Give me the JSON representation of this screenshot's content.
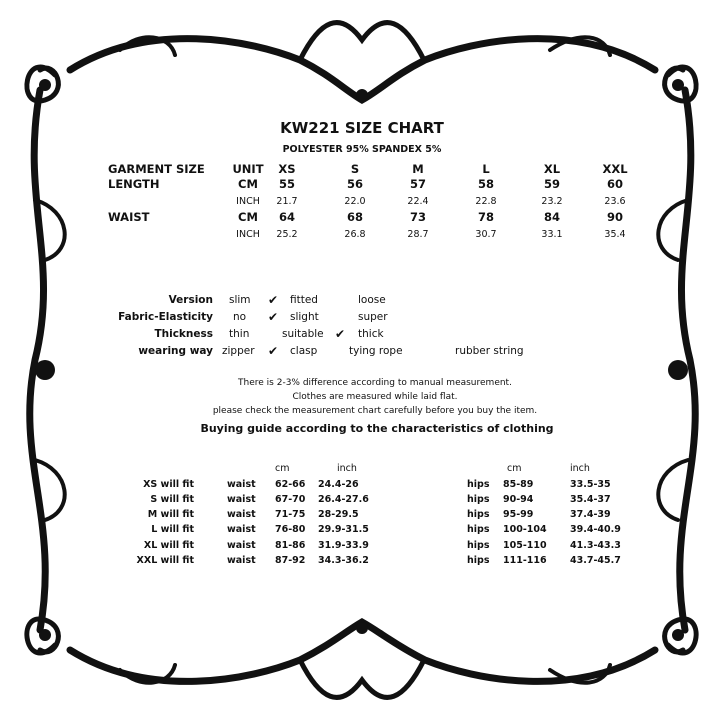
{
  "title": "KW221 SIZE CHART",
  "material": "POLYESTER 95% SPANDEX 5%",
  "size_table": {
    "header": {
      "label": "GARMENT SIZE",
      "unit": "UNIT",
      "sizes": [
        "XS",
        "S",
        "M",
        "L",
        "XL",
        "XXL"
      ]
    },
    "rows": [
      {
        "label": "LENGTH",
        "unit": "CM",
        "values": [
          "55",
          "56",
          "57",
          "58",
          "59",
          "60"
        ],
        "bold": true
      },
      {
        "label": "",
        "unit": "INCH",
        "values": [
          "21.7",
          "22.0",
          "22.4",
          "22.8",
          "23.2",
          "23.6"
        ],
        "bold": false
      },
      {
        "label": "WAIST",
        "unit": "CM",
        "values": [
          "64",
          "68",
          "73",
          "78",
          "84",
          "90"
        ],
        "bold": true
      },
      {
        "label": "",
        "unit": "INCH",
        "values": [
          "25.2",
          "26.8",
          "28.7",
          "30.7",
          "33.1",
          "35.4"
        ],
        "bold": false
      }
    ]
  },
  "characteristics": [
    {
      "label": "Version",
      "options": [
        "slim",
        "fitted",
        "loose"
      ],
      "selected": "fitted"
    },
    {
      "label": "Fabric-Elasticity",
      "options": [
        "no",
        "slight",
        "super"
      ],
      "selected": "slight"
    },
    {
      "label": "Thickness",
      "options": [
        "thin",
        "suitable",
        "thick"
      ],
      "selected": "suitable"
    },
    {
      "label": "wearing way",
      "options": [
        "zipper",
        "clasp",
        "tying rope",
        "rubber string"
      ],
      "selected": "clasp"
    }
  ],
  "check_icon": "checkmark-icon",
  "notes": [
    "There is 2-3% difference according to manual measurement.",
    "Clothes are measured while laid flat.",
    "please check the measurement chart carefully before you buy the item."
  ],
  "guide_title": "Buying guide according to the characteristics of clothing",
  "guide": {
    "headers": {
      "cm": "cm",
      "inch": "inch"
    },
    "rows": [
      {
        "label": "XS will  fit",
        "waist": "waist",
        "waist_cm": "62-66",
        "waist_inch": "24.4-26",
        "hips": "hips",
        "hips_cm": "85-89",
        "hips_inch": "33.5-35"
      },
      {
        "label": "S will  fit",
        "waist": "waist",
        "waist_cm": "67-70",
        "waist_inch": "26.4-27.6",
        "hips": "hips",
        "hips_cm": "90-94",
        "hips_inch": "35.4-37"
      },
      {
        "label": "M will fit",
        "waist": "waist",
        "waist_cm": "71-75",
        "waist_inch": "28-29.5",
        "hips": "hips",
        "hips_cm": "95-99",
        "hips_inch": "37.4-39"
      },
      {
        "label": "L will fit",
        "waist": "waist",
        "waist_cm": "76-80",
        "waist_inch": "29.9-31.5",
        "hips": "hips",
        "hips_cm": "100-104",
        "hips_inch": "39.4-40.9"
      },
      {
        "label": "XL will fit",
        "waist": "waist",
        "waist_cm": "81-86",
        "waist_inch": "31.9-33.9",
        "hips": "hips",
        "hips_cm": "105-110",
        "hips_inch": "41.3-43.3"
      },
      {
        "label": "XXL will fit",
        "waist": "waist",
        "waist_cm": "87-92",
        "waist_inch": "34.3-36.2",
        "hips": "hips",
        "hips_cm": "111-116",
        "hips_inch": "43.7-45.7"
      }
    ]
  }
}
